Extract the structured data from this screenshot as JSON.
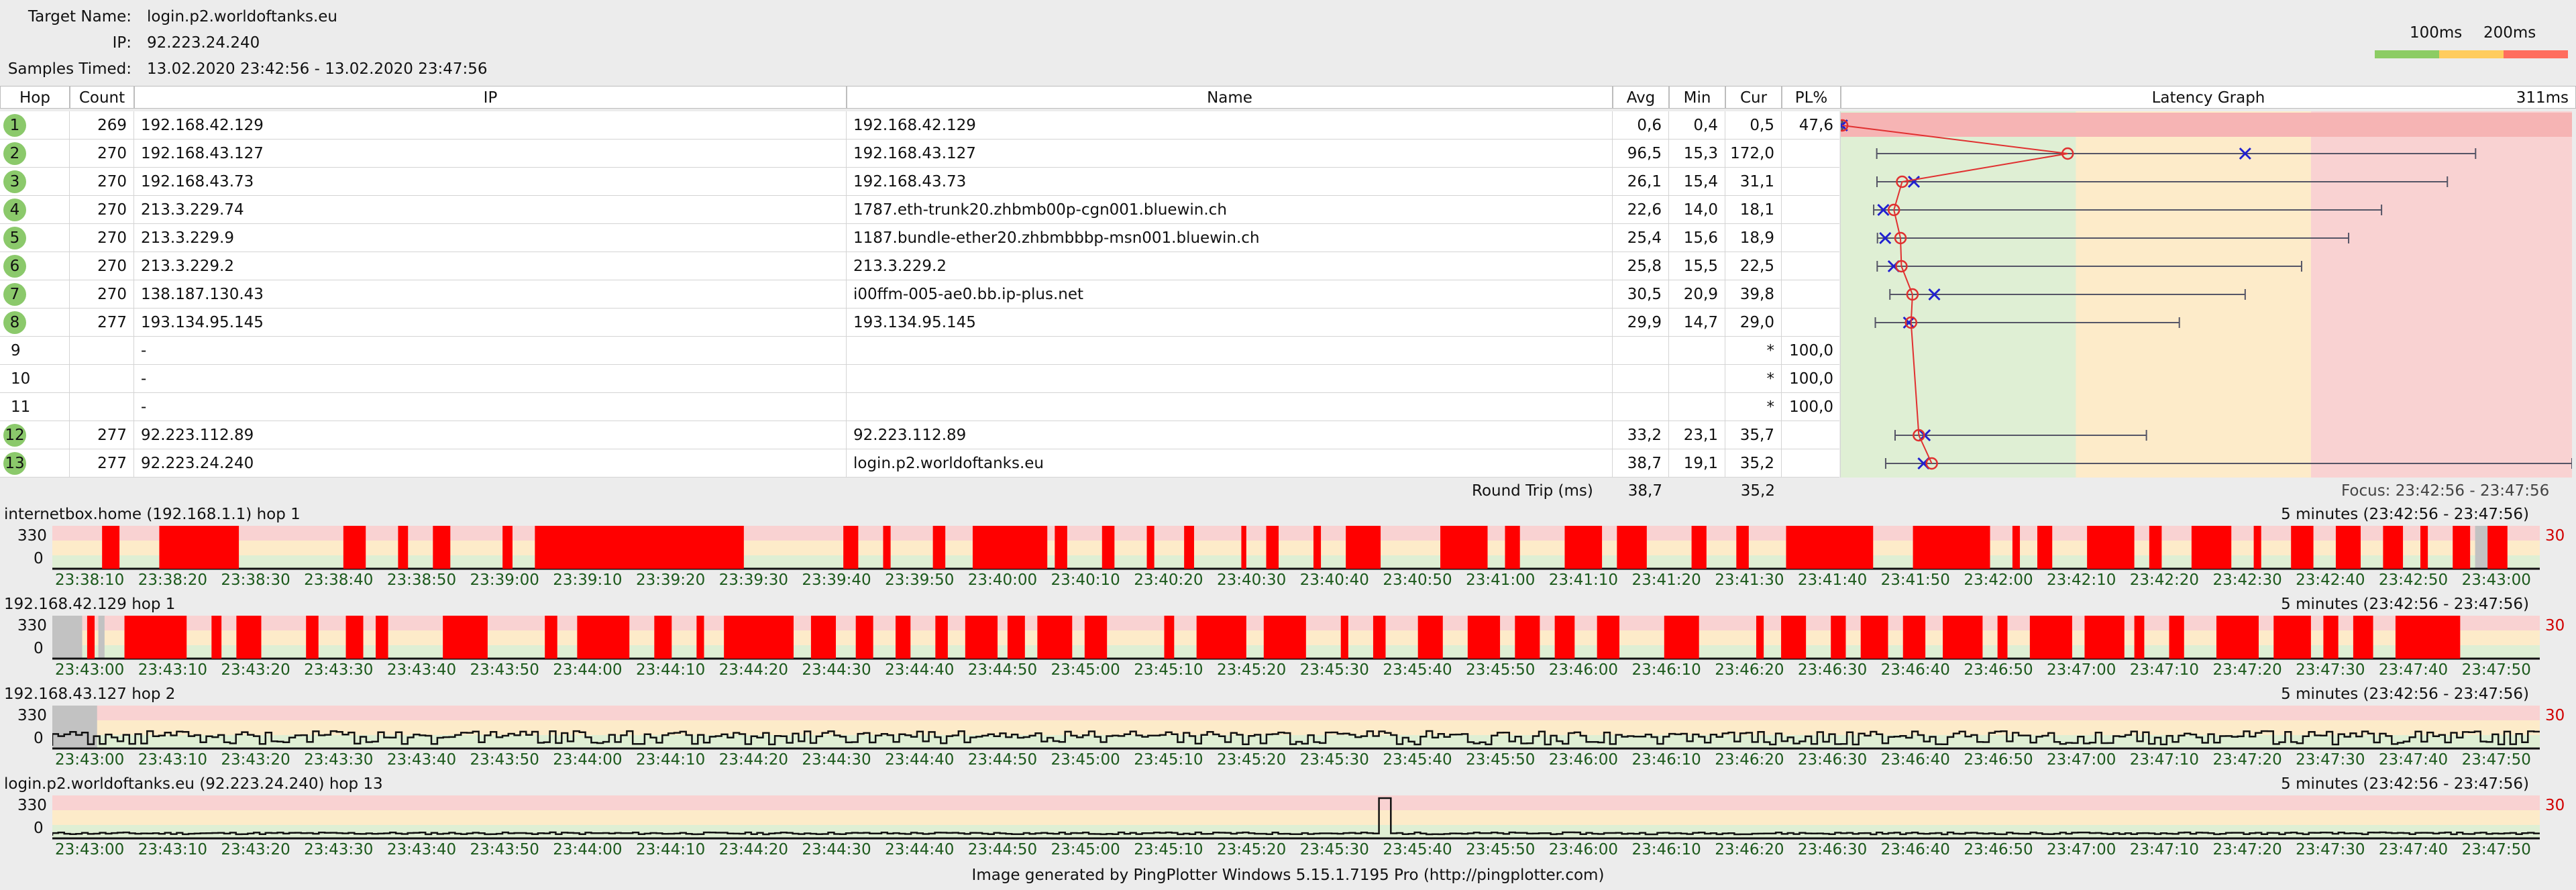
{
  "header": {
    "target_label": "Target Name:",
    "target_value": "login.p2.worldoftanks.eu",
    "ip_label": "IP:",
    "ip_value": "92.223.24.240",
    "samples_label": "Samples Timed:",
    "samples_value": "13.02.2020 23:42:56 - 13.02.2020 23:47:56",
    "legend_100": "100ms",
    "legend_200": "200ms"
  },
  "colors": {
    "green": "#8ccc64",
    "yellow": "#ffcc5e",
    "red": "#ff6d5e",
    "loss": "#ff0000",
    "band_green": "#dfefd4",
    "band_yellow": "#fdebc9",
    "band_red": "#f9d2d2"
  },
  "table": {
    "columns": [
      "Hop",
      "Count",
      "IP",
      "Name",
      "Avg",
      "Min",
      "Cur",
      "PL%",
      "Latency Graph"
    ],
    "max_label": "311ms",
    "rows": [
      {
        "hop": "1",
        "count": "269",
        "ip": "192.168.42.129",
        "name": "192.168.42.129",
        "avg": "0,6",
        "min": "0,4",
        "cur": "0,5",
        "pl": "47,6",
        "circle": true
      },
      {
        "hop": "2",
        "count": "270",
        "ip": "192.168.43.127",
        "name": "192.168.43.127",
        "avg": "96,5",
        "min": "15,3",
        "cur": "172,0",
        "pl": "",
        "circle": true
      },
      {
        "hop": "3",
        "count": "270",
        "ip": "192.168.43.73",
        "name": "192.168.43.73",
        "avg": "26,1",
        "min": "15,4",
        "cur": "31,1",
        "pl": "",
        "circle": true
      },
      {
        "hop": "4",
        "count": "270",
        "ip": "213.3.229.74",
        "name": "1787.eth-trunk20.zhbmb00p-cgn001.bluewin.ch",
        "avg": "22,6",
        "min": "14,0",
        "cur": "18,1",
        "pl": "",
        "circle": true
      },
      {
        "hop": "5",
        "count": "270",
        "ip": "213.3.229.9",
        "name": "1187.bundle-ether20.zhbmbbbp-msn001.bluewin.ch",
        "avg": "25,4",
        "min": "15,6",
        "cur": "18,9",
        "pl": "",
        "circle": true
      },
      {
        "hop": "6",
        "count": "270",
        "ip": "213.3.229.2",
        "name": "213.3.229.2",
        "avg": "25,8",
        "min": "15,5",
        "cur": "22,5",
        "pl": "",
        "circle": true
      },
      {
        "hop": "7",
        "count": "270",
        "ip": "138.187.130.43",
        "name": "i00ffm-005-ae0.bb.ip-plus.net",
        "avg": "30,5",
        "min": "20,9",
        "cur": "39,8",
        "pl": "",
        "circle": true
      },
      {
        "hop": "8",
        "count": "277",
        "ip": "193.134.95.145",
        "name": "193.134.95.145",
        "avg": "29,9",
        "min": "14,7",
        "cur": "29,0",
        "pl": "",
        "circle": true
      },
      {
        "hop": "9",
        "count": "",
        "ip": "-",
        "name": "",
        "avg": "",
        "min": "",
        "cur": "*",
        "pl": "100,0",
        "circle": false
      },
      {
        "hop": "10",
        "count": "",
        "ip": "-",
        "name": "",
        "avg": "",
        "min": "",
        "cur": "*",
        "pl": "100,0",
        "circle": false
      },
      {
        "hop": "11",
        "count": "",
        "ip": "-",
        "name": "",
        "avg": "",
        "min": "",
        "cur": "*",
        "pl": "100,0",
        "circle": false
      },
      {
        "hop": "12",
        "count": "277",
        "ip": "92.223.112.89",
        "name": "92.223.112.89",
        "avg": "33,2",
        "min": "23,1",
        "cur": "35,7",
        "pl": "",
        "circle": true
      },
      {
        "hop": "13",
        "count": "277",
        "ip": "92.223.24.240",
        "name": "login.p2.worldoftanks.eu",
        "avg": "38,7",
        "min": "19,1",
        "cur": "35,2",
        "pl": "",
        "circle": true
      }
    ],
    "round_trip_label": "Round Trip (ms)",
    "round_trip_avg": "38,7",
    "round_trip_cur": "35,2",
    "focus": "Focus: 23:42:56 - 23:47:56"
  },
  "latency_graph": {
    "max_ms": 311,
    "hops": [
      {
        "min": 0.4,
        "avg": 0.6,
        "max": 0.9,
        "cur": 0.5
      },
      {
        "min": 15.3,
        "avg": 96.5,
        "max": 270,
        "cur": 172.0
      },
      {
        "min": 15.4,
        "avg": 26.1,
        "max": 258,
        "cur": 31.1
      },
      {
        "min": 14.0,
        "avg": 22.6,
        "max": 230,
        "cur": 18.1
      },
      {
        "min": 15.6,
        "avg": 25.4,
        "max": 216,
        "cur": 18.9
      },
      {
        "min": 15.5,
        "avg": 25.8,
        "max": 196,
        "cur": 22.5
      },
      {
        "min": 20.9,
        "avg": 30.5,
        "max": 172,
        "cur": 39.8
      },
      {
        "min": 14.7,
        "avg": 29.9,
        "max": 144,
        "cur": 29.0
      },
      null,
      null,
      null,
      {
        "min": 23.1,
        "avg": 33.2,
        "max": 130,
        "cur": 35.7
      },
      {
        "min": 19.1,
        "avg": 38.7,
        "max": 311,
        "cur": 35.2
      }
    ]
  },
  "timelines": [
    {
      "title": "internetbox.home (192.168.1.1) hop 1",
      "range": "5 minutes (23:42:56 - 23:47:56)",
      "y_top": "330",
      "y_bottom": "0",
      "y_right": "30",
      "type": "loss",
      "times": [
        "23:38:10",
        "23:38:20",
        "23:38:30",
        "23:38:40",
        "23:38:50",
        "23:39:00",
        "23:39:10",
        "23:39:20",
        "23:39:30",
        "23:39:40",
        "23:39:50",
        "23:40:00",
        "23:40:10",
        "23:40:20",
        "23:40:30",
        "23:40:40",
        "23:40:50",
        "23:41:00",
        "23:41:10",
        "23:41:20",
        "23:41:30",
        "23:41:40",
        "23:41:50",
        "23:42:00",
        "23:42:10",
        "23:42:20",
        "23:42:30",
        "23:42:40",
        "23:42:50",
        "23:43:00"
      ],
      "loss": [
        [
          0.02,
          0.027
        ],
        [
          0.043,
          0.075
        ],
        [
          0.117,
          0.126
        ],
        [
          0.139,
          0.143
        ],
        [
          0.153,
          0.16
        ],
        [
          0.181,
          0.185
        ],
        [
          0.194,
          0.278
        ],
        [
          0.318,
          0.324
        ],
        [
          0.334,
          0.337
        ],
        [
          0.354,
          0.359
        ],
        [
          0.37,
          0.4
        ],
        [
          0.403,
          0.408
        ],
        [
          0.422,
          0.427
        ],
        [
          0.44,
          0.443
        ],
        [
          0.455,
          0.459
        ],
        [
          0.478,
          0.48
        ],
        [
          0.488,
          0.493
        ],
        [
          0.507,
          0.51
        ],
        [
          0.52,
          0.534
        ],
        [
          0.558,
          0.577
        ],
        [
          0.584,
          0.59
        ],
        [
          0.608,
          0.623
        ],
        [
          0.629,
          0.641
        ],
        [
          0.659,
          0.665
        ],
        [
          0.677,
          0.682
        ],
        [
          0.697,
          0.732
        ],
        [
          0.748,
          0.779
        ],
        [
          0.788,
          0.791
        ],
        [
          0.798,
          0.804
        ],
        [
          0.818,
          0.837
        ],
        [
          0.843,
          0.848
        ],
        [
          0.86,
          0.876
        ],
        [
          0.885,
          0.888
        ],
        [
          0.9,
          0.909
        ],
        [
          0.918,
          0.928
        ],
        [
          0.937,
          0.945
        ],
        [
          0.952,
          0.955
        ],
        [
          0.965,
          0.972
        ],
        [
          0.979,
          0.987
        ]
      ],
      "grey": [
        [
          0.974,
          0.986
        ]
      ]
    },
    {
      "title": "192.168.42.129 hop 1",
      "range": "5 minutes (23:42:56 - 23:47:56)",
      "y_top": "330",
      "y_bottom": "0",
      "y_right": "30",
      "type": "loss",
      "times": [
        "23:43:00",
        "23:43:10",
        "23:43:20",
        "23:43:30",
        "23:43:40",
        "23:43:50",
        "23:44:00",
        "23:44:10",
        "23:44:20",
        "23:44:30",
        "23:44:40",
        "23:44:50",
        "23:45:00",
        "23:45:10",
        "23:45:20",
        "23:45:30",
        "23:45:40",
        "23:45:50",
        "23:46:00",
        "23:46:10",
        "23:46:20",
        "23:46:30",
        "23:46:40",
        "23:46:50",
        "23:47:00",
        "23:47:10",
        "23:47:20",
        "23:47:30",
        "23:47:40",
        "23:47:50"
      ],
      "loss": [
        [
          0.014,
          0.017
        ],
        [
          0.029,
          0.054
        ],
        [
          0.064,
          0.068
        ],
        [
          0.074,
          0.084
        ],
        [
          0.102,
          0.107
        ],
        [
          0.118,
          0.125
        ],
        [
          0.13,
          0.135
        ],
        [
          0.157,
          0.175
        ],
        [
          0.198,
          0.203
        ],
        [
          0.211,
          0.232
        ],
        [
          0.242,
          0.249
        ],
        [
          0.259,
          0.262
        ],
        [
          0.27,
          0.298
        ],
        [
          0.305,
          0.315
        ],
        [
          0.323,
          0.33
        ],
        [
          0.339,
          0.345
        ],
        [
          0.355,
          0.36
        ],
        [
          0.367,
          0.38
        ],
        [
          0.384,
          0.391
        ],
        [
          0.396,
          0.41
        ],
        [
          0.415,
          0.424
        ],
        [
          0.447,
          0.451
        ],
        [
          0.46,
          0.48
        ],
        [
          0.487,
          0.504
        ],
        [
          0.518,
          0.521
        ],
        [
          0.531,
          0.536
        ],
        [
          0.549,
          0.559
        ],
        [
          0.569,
          0.582
        ],
        [
          0.588,
          0.598
        ],
        [
          0.604,
          0.612
        ],
        [
          0.621,
          0.63
        ],
        [
          0.648,
          0.662
        ],
        [
          0.685,
          0.688
        ],
        [
          0.695,
          0.705
        ],
        [
          0.715,
          0.721
        ],
        [
          0.727,
          0.738
        ],
        [
          0.744,
          0.753
        ],
        [
          0.76,
          0.776
        ],
        [
          0.782,
          0.786
        ],
        [
          0.795,
          0.812
        ],
        [
          0.817,
          0.833
        ],
        [
          0.837,
          0.841
        ],
        [
          0.851,
          0.857
        ],
        [
          0.87,
          0.887
        ],
        [
          0.893,
          0.908
        ],
        [
          0.913,
          0.919
        ],
        [
          0.925,
          0.933
        ],
        [
          0.942,
          0.968
        ]
      ],
      "grey": [
        [
          0.0,
          0.012
        ],
        [
          0.0185,
          0.021
        ]
      ]
    },
    {
      "title": "192.168.43.127 hop 2",
      "range": "5 minutes (23:42:56 - 23:47:56)",
      "y_top": "330",
      "y_bottom": "0",
      "y_right": "30",
      "type": "latency",
      "seed": 7,
      "spike": null,
      "times": [
        "23:43:00",
        "23:43:10",
        "23:43:20",
        "23:43:30",
        "23:43:40",
        "23:43:50",
        "23:44:00",
        "23:44:10",
        "23:44:20",
        "23:44:30",
        "23:44:40",
        "23:44:50",
        "23:45:00",
        "23:45:10",
        "23:45:20",
        "23:45:30",
        "23:45:40",
        "23:45:50",
        "23:46:00",
        "23:46:10",
        "23:46:20",
        "23:46:30",
        "23:46:40",
        "23:46:50",
        "23:47:00",
        "23:47:10",
        "23:47:20",
        "23:47:30",
        "23:47:40",
        "23:47:50"
      ],
      "grey": [
        [
          0.0,
          0.018
        ]
      ]
    },
    {
      "title": "login.p2.worldoftanks.eu (92.223.24.240) hop 13",
      "range": "5 minutes (23:42:56 - 23:47:56)",
      "y_top": "330",
      "y_bottom": "0",
      "y_right": "30",
      "type": "latency_low",
      "seed": 11,
      "spike": 0.534,
      "times": [
        "23:43:00",
        "23:43:10",
        "23:43:20",
        "23:43:30",
        "23:43:40",
        "23:43:50",
        "23:44:00",
        "23:44:10",
        "23:44:20",
        "23:44:30",
        "23:44:40",
        "23:44:50",
        "23:45:00",
        "23:45:10",
        "23:45:20",
        "23:45:30",
        "23:45:40",
        "23:45:50",
        "23:46:00",
        "23:46:10",
        "23:46:20",
        "23:46:30",
        "23:46:40",
        "23:46:50",
        "23:47:00",
        "23:47:10",
        "23:47:20",
        "23:47:30",
        "23:47:40",
        "23:47:50"
      ],
      "grey": []
    }
  ],
  "footer": "Image generated by PingPlotter Windows 5.15.1.7195 Pro (http://pingplotter.com)"
}
